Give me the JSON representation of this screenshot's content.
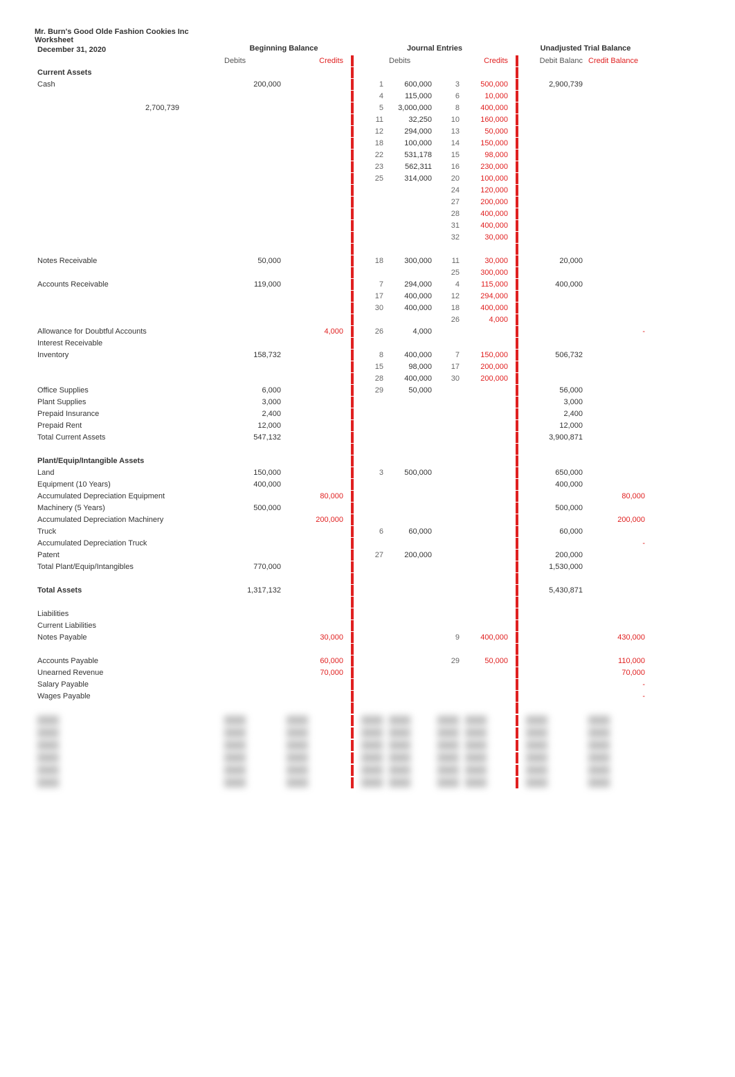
{
  "title_lines": [
    "Mr. Burn's Good Olde Fashion Cookies Inc",
    "Worksheet",
    "December 31, 2020"
  ],
  "groups": {
    "beginning": "Beginning Balance",
    "journal": "Journal Entries",
    "trial": "Unadjusted Trial Balance"
  },
  "col_heads": {
    "debits": "Debits",
    "credits": "Credits",
    "debit_bal": "Debit Balanc",
    "credit_bal": "Credit Balance"
  },
  "colors": {
    "red": "#e02020",
    "text": "#333333",
    "bg": "#ffffff",
    "muted": "#666666"
  },
  "rows": [
    {
      "label": "Current Assets",
      "kind": "section"
    },
    {
      "label": "Cash",
      "bd": "200,000",
      "jd_ref": "1",
      "jd": "600,000",
      "jc_ref": "3",
      "jc": "500,000",
      "td": "2,900,739"
    },
    {
      "label": "",
      "jd_ref": "4",
      "jd": "115,000",
      "jc_ref": "6",
      "jc": "10,000"
    },
    {
      "label": "2,700,739",
      "indent": true,
      "jd_ref": "5",
      "jd": "3,000,000",
      "jc_ref": "8",
      "jc": "400,000"
    },
    {
      "label": "",
      "jd_ref": "11",
      "jd": "32,250",
      "jc_ref": "10",
      "jc": "160,000"
    },
    {
      "label": "",
      "jd_ref": "12",
      "jd": "294,000",
      "jc_ref": "13",
      "jc": "50,000"
    },
    {
      "label": "",
      "jd_ref": "18",
      "jd": "100,000",
      "jc_ref": "14",
      "jc": "150,000"
    },
    {
      "label": "",
      "jd_ref": "22",
      "jd": "531,178",
      "jc_ref": "15",
      "jc": "98,000"
    },
    {
      "label": "",
      "jd_ref": "23",
      "jd": "562,311",
      "jc_ref": "16",
      "jc": "230,000"
    },
    {
      "label": "",
      "jd_ref": "25",
      "jd": "314,000",
      "jc_ref": "20",
      "jc": "100,000"
    },
    {
      "label": "",
      "jc_ref": "24",
      "jc": "120,000"
    },
    {
      "label": "",
      "jc_ref": "27",
      "jc": "200,000"
    },
    {
      "label": "",
      "jc_ref": "28",
      "jc": "400,000"
    },
    {
      "label": "",
      "jc_ref": "31",
      "jc": "400,000"
    },
    {
      "label": "",
      "jc_ref": "32",
      "jc": "30,000"
    },
    {
      "spacer": true
    },
    {
      "label": "Notes Receivable",
      "bd": "50,000",
      "jd_ref": "18",
      "jd": "300,000",
      "jc_ref": "11",
      "jc": "30,000",
      "td": "20,000"
    },
    {
      "label": "",
      "jc_ref": "25",
      "jc": "300,000"
    },
    {
      "label": "Accounts Receivable",
      "bd": "119,000",
      "jd_ref": "7",
      "jd": "294,000",
      "jc_ref": "4",
      "jc": "115,000",
      "td": "400,000"
    },
    {
      "label": "",
      "jd_ref": "17",
      "jd": "400,000",
      "jc_ref": "12",
      "jc": "294,000"
    },
    {
      "label": "",
      "jd_ref": "30",
      "jd": "400,000",
      "jc_ref": "18",
      "jc": "400,000"
    },
    {
      "label": "",
      "jc_ref": "26",
      "jc": "4,000"
    },
    {
      "label": "Allowance for Doubtful Accounts",
      "bc": "4,000",
      "jd_ref": "26",
      "jd": "4,000",
      "tc": "-"
    },
    {
      "label": "Interest Receivable"
    },
    {
      "label": "Inventory",
      "bd": "158,732",
      "jd_ref": "8",
      "jd": "400,000",
      "jc_ref": "7",
      "jc": "150,000",
      "td": "506,732"
    },
    {
      "label": "",
      "jd_ref": "15",
      "jd": "98,000",
      "jc_ref": "17",
      "jc": "200,000"
    },
    {
      "label": "",
      "jd_ref": "28",
      "jd": "400,000",
      "jc_ref": "30",
      "jc": "200,000"
    },
    {
      "label": "Office Supplies",
      "bd": "6,000",
      "jd_ref": "29",
      "jd": "50,000",
      "td": "56,000"
    },
    {
      "label": "Plant Supplies",
      "bd": "3,000",
      "td": "3,000"
    },
    {
      "label": "Prepaid Insurance",
      "bd": "2,400",
      "td": "2,400"
    },
    {
      "label": "Prepaid Rent",
      "bd": "12,000",
      "td": "12,000"
    },
    {
      "label": "Total Current Assets",
      "bd": "547,132",
      "td": "3,900,871"
    },
    {
      "spacer": true
    },
    {
      "label": "Plant/Equip/Intangible Assets",
      "kind": "section"
    },
    {
      "label": "Land",
      "bd": "150,000",
      "jd_ref": "3",
      "jd": "500,000",
      "td": "650,000"
    },
    {
      "label": "Equipment (10 Years)",
      "bd": "400,000",
      "td": "400,000"
    },
    {
      "label": "Accumulated Depreciation Equipment",
      "bc": "80,000",
      "tc": "80,000"
    },
    {
      "label": "Machinery (5 Years)",
      "bd": "500,000",
      "td": "500,000"
    },
    {
      "label": "Accumulated Depreciation Machinery",
      "bc": "200,000",
      "tc": "200,000"
    },
    {
      "label": "Truck",
      "jd_ref": "6",
      "jd": "60,000",
      "td": "60,000"
    },
    {
      "label": "Accumulated Depreciation Truck",
      "tc": "-"
    },
    {
      "label": "Patent",
      "jd_ref": "27",
      "jd": "200,000",
      "td": "200,000"
    },
    {
      "label": "Total Plant/Equip/Intangibles",
      "bd": "770,000",
      "td": "1,530,000"
    },
    {
      "spacer": true
    },
    {
      "label": "Total Assets",
      "kind": "bold",
      "bd": "1,317,132",
      "td": "5,430,871"
    },
    {
      "spacer": true
    },
    {
      "label": "Liabilities"
    },
    {
      "label": "Current Liabilities"
    },
    {
      "label": "Notes Payable",
      "bc": "30,000",
      "jc_ref": "9",
      "jc": "400,000",
      "tc": "430,000"
    },
    {
      "spacer": true
    },
    {
      "label": "Accounts Payable",
      "bc": "60,000",
      "jc_ref": "29",
      "jc": "50,000",
      "tc": "110,000"
    },
    {
      "label": "Unearned Revenue",
      "bc": "70,000",
      "tc": "70,000"
    },
    {
      "label": "Salary Payable",
      "tc": "-"
    },
    {
      "label": "Wages Payable",
      "tc": "-"
    },
    {
      "spacer": true
    }
  ],
  "blurred_rows": 6
}
